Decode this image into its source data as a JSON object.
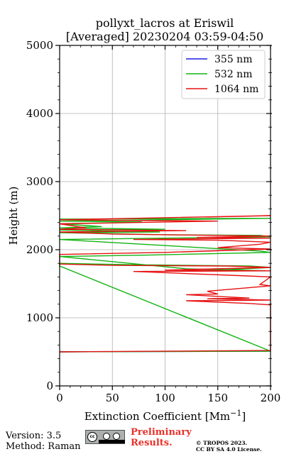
{
  "title_line1": "pollyxt_lacros at Eriswil",
  "title_line2": "[Averaged] 20230204 03:59-04:50",
  "footer": {
    "version": "Version: 3.5",
    "method": "Method: Raman",
    "preliminary_line1": "Preliminary",
    "preliminary_line2": "Results.",
    "copyright_line1": "© TROPOS 2023.",
    "copyright_line2": "CC BY SA 4.0 License."
  },
  "chart_data": {
    "type": "line",
    "xlabel": "Extinction Coefficient",
    "xlabel_unit": "[Mm",
    "xlabel_unit_exp": "−1",
    "xlabel_unit_close": "]",
    "ylabel": "Height (m)",
    "xlim": [
      0,
      200
    ],
    "ylim": [
      0,
      5000
    ],
    "xticks": [
      0,
      50,
      100,
      150,
      200
    ],
    "yticks": [
      0,
      1000,
      2000,
      3000,
      4000,
      5000
    ],
    "grid": true,
    "legend_position": "top-right",
    "series": [
      {
        "name": "355 nm",
        "color": "#1f1fe6",
        "points": [
          [
            0,
            500
          ],
          [
            200,
            510
          ]
        ]
      },
      {
        "name": "532 nm",
        "color": "#12b312",
        "points": [
          [
            0,
            500
          ],
          [
            200,
            510
          ],
          [
            0,
            1760
          ],
          [
            0,
            1800
          ],
          [
            65,
            1780
          ],
          [
            180,
            1760
          ],
          [
            200,
            1740
          ],
          [
            150,
            1700
          ],
          [
            200,
            1690
          ],
          [
            120,
            1720
          ],
          [
            0,
            1900
          ],
          [
            80,
            1920
          ],
          [
            200,
            1960
          ],
          [
            190,
            1980
          ],
          [
            0,
            2150
          ],
          [
            200,
            2190
          ],
          [
            190,
            2210
          ],
          [
            100,
            2220
          ],
          [
            0,
            2250
          ],
          [
            95,
            2260
          ],
          [
            0,
            2290
          ],
          [
            100,
            2300
          ],
          [
            0,
            2320
          ],
          [
            40,
            2340
          ],
          [
            0,
            2380
          ],
          [
            60,
            2400
          ],
          [
            78,
            2410
          ],
          [
            0,
            2420
          ],
          [
            200,
            2460
          ],
          [
            0,
            2450
          ]
        ]
      },
      {
        "name": "1064 nm",
        "color": "#e61212",
        "points": [
          [
            0,
            500
          ],
          [
            200,
            520
          ],
          [
            200,
            1190
          ],
          [
            180,
            1210
          ],
          [
            120,
            1250
          ],
          [
            200,
            1260
          ],
          [
            140,
            1280
          ],
          [
            180,
            1290
          ],
          [
            120,
            1340
          ],
          [
            150,
            1350
          ],
          [
            140,
            1390
          ],
          [
            200,
            1470
          ],
          [
            190,
            1490
          ],
          [
            200,
            1600
          ],
          [
            170,
            1620
          ],
          [
            70,
            1680
          ],
          [
            200,
            1690
          ],
          [
            100,
            1700
          ],
          [
            200,
            1740
          ],
          [
            160,
            1760
          ],
          [
            50,
            1770
          ],
          [
            0,
            1790
          ],
          [
            0,
            1930
          ],
          [
            100,
            1960
          ],
          [
            160,
            1990
          ],
          [
            200,
            2010
          ],
          [
            150,
            2030
          ],
          [
            190,
            2080
          ],
          [
            200,
            2110
          ],
          [
            150,
            2140
          ],
          [
            70,
            2150
          ],
          [
            200,
            2170
          ],
          [
            130,
            2180
          ],
          [
            200,
            2200
          ],
          [
            50,
            2230
          ],
          [
            0,
            2260
          ],
          [
            120,
            2280
          ],
          [
            0,
            2300
          ],
          [
            25,
            2320
          ],
          [
            0,
            2380
          ],
          [
            150,
            2420
          ],
          [
            0,
            2440
          ],
          [
            200,
            2500
          ],
          [
            140,
            2480
          ]
        ]
      }
    ]
  }
}
